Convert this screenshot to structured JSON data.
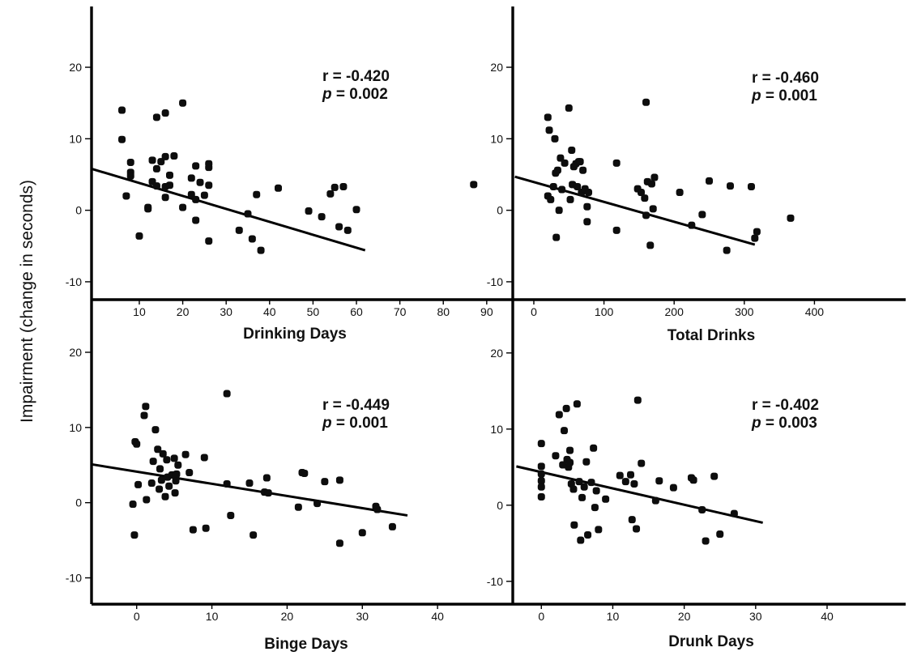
{
  "figure": {
    "ylabel": "Impairment (change in seconds)"
  },
  "chart_data": [
    {
      "type": "scatter",
      "xlabel": "Drinking Days",
      "ylabel": "Impairment (change in seconds)",
      "xlim": [
        -1,
        96
      ],
      "ylim": [
        -12.5,
        28.5
      ],
      "x_ticks": [
        10,
        20,
        30,
        40,
        50,
        60,
        70,
        80,
        90
      ],
      "y_ticks": [
        -10,
        0,
        10,
        20
      ],
      "stat_r": "r = -0.420",
      "stat_p_letter": "p",
      "stat_p_value": " = 0.002",
      "fit_line": {
        "x": [
          -1,
          62
        ],
        "y": [
          5.8,
          -5.6
        ]
      },
      "points": [
        {
          "x": 6,
          "y": 14
        },
        {
          "x": 6,
          "y": 9.9
        },
        {
          "x": 7,
          "y": 2
        },
        {
          "x": 8,
          "y": 5.3
        },
        {
          "x": 8,
          "y": 6.7
        },
        {
          "x": 8,
          "y": 4.8
        },
        {
          "x": 10,
          "y": -3.6
        },
        {
          "x": 12,
          "y": 0.2
        },
        {
          "x": 12,
          "y": 0.4
        },
        {
          "x": 13,
          "y": 4
        },
        {
          "x": 13,
          "y": 7
        },
        {
          "x": 14,
          "y": 13
        },
        {
          "x": 14,
          "y": 3.4
        },
        {
          "x": 14,
          "y": 5.8
        },
        {
          "x": 15,
          "y": 6.8
        },
        {
          "x": 16,
          "y": 13.6
        },
        {
          "x": 16,
          "y": 7.5
        },
        {
          "x": 16,
          "y": 3.3
        },
        {
          "x": 16,
          "y": 1.8
        },
        {
          "x": 17,
          "y": 4.9
        },
        {
          "x": 17,
          "y": 3.5
        },
        {
          "x": 18,
          "y": 7.6
        },
        {
          "x": 20,
          "y": 15
        },
        {
          "x": 20,
          "y": 0.4
        },
        {
          "x": 22,
          "y": 2.2
        },
        {
          "x": 22,
          "y": 4.5
        },
        {
          "x": 23,
          "y": 6.2
        },
        {
          "x": 23,
          "y": 1.5
        },
        {
          "x": 23,
          "y": -1.4
        },
        {
          "x": 24,
          "y": 3.9
        },
        {
          "x": 25,
          "y": 2.1
        },
        {
          "x": 26,
          "y": 3.5
        },
        {
          "x": 26,
          "y": 6.5
        },
        {
          "x": 26,
          "y": 6
        },
        {
          "x": 26,
          "y": -4.3
        },
        {
          "x": 33,
          "y": -2.8
        },
        {
          "x": 35,
          "y": -0.5
        },
        {
          "x": 36,
          "y": -4
        },
        {
          "x": 37,
          "y": 2.2
        },
        {
          "x": 38,
          "y": -5.6
        },
        {
          "x": 42,
          "y": 3.1
        },
        {
          "x": 49,
          "y": -0.1
        },
        {
          "x": 52,
          "y": -0.9
        },
        {
          "x": 54,
          "y": 2.3
        },
        {
          "x": 55,
          "y": 3.2
        },
        {
          "x": 56,
          "y": -2.3
        },
        {
          "x": 57,
          "y": 3.3
        },
        {
          "x": 58,
          "y": -2.8
        },
        {
          "x": 60,
          "y": 0.1
        },
        {
          "x": 87,
          "y": 3.6
        }
      ]
    },
    {
      "type": "scatter",
      "xlabel": "Total Drinks",
      "ylabel": "Impairment (change in seconds)",
      "xlim": [
        -30,
        530
      ],
      "ylim": [
        -12.5,
        28.5
      ],
      "x_ticks": [
        0,
        100,
        200,
        300,
        400
      ],
      "y_ticks": [
        -10,
        0,
        10,
        20
      ],
      "stat_r": "r = -0.460",
      "stat_p_letter": "p",
      "stat_p_value": " = 0.001",
      "fit_line": {
        "x": [
          -27,
          315
        ],
        "y": [
          4.7,
          -4.8
        ]
      },
      "points": [
        {
          "x": 20,
          "y": 13
        },
        {
          "x": 22,
          "y": 11.2
        },
        {
          "x": 20,
          "y": 2
        },
        {
          "x": 24,
          "y": 1.5
        },
        {
          "x": 28,
          "y": 3.3
        },
        {
          "x": 30,
          "y": 10
        },
        {
          "x": 31,
          "y": 5.2
        },
        {
          "x": 32,
          "y": -3.8
        },
        {
          "x": 34,
          "y": 5.6
        },
        {
          "x": 36,
          "y": 0
        },
        {
          "x": 38,
          "y": 7.3
        },
        {
          "x": 40,
          "y": 2.9
        },
        {
          "x": 44,
          "y": 6.6
        },
        {
          "x": 50,
          "y": 14.3
        },
        {
          "x": 52,
          "y": 1.5
        },
        {
          "x": 54,
          "y": 8.4
        },
        {
          "x": 55,
          "y": 3.6
        },
        {
          "x": 57,
          "y": 6.1
        },
        {
          "x": 60,
          "y": 6.5
        },
        {
          "x": 62,
          "y": 3.3
        },
        {
          "x": 64,
          "y": 6.8
        },
        {
          "x": 66,
          "y": 6.8
        },
        {
          "x": 68,
          "y": 2.5
        },
        {
          "x": 70,
          "y": 5.6
        },
        {
          "x": 73,
          "y": 3
        },
        {
          "x": 76,
          "y": 0.5
        },
        {
          "x": 76,
          "y": -1.6
        },
        {
          "x": 78,
          "y": 2.5
        },
        {
          "x": 118,
          "y": 6.6
        },
        {
          "x": 118,
          "y": -2.8
        },
        {
          "x": 148,
          "y": 3
        },
        {
          "x": 153,
          "y": 2.5
        },
        {
          "x": 160,
          "y": 15.1
        },
        {
          "x": 158,
          "y": 1.7
        },
        {
          "x": 160,
          "y": -0.7
        },
        {
          "x": 162,
          "y": 4
        },
        {
          "x": 166,
          "y": -4.9
        },
        {
          "x": 168,
          "y": 3.7
        },
        {
          "x": 170,
          "y": 0.2
        },
        {
          "x": 172,
          "y": 4.6
        },
        {
          "x": 208,
          "y": 2.5
        },
        {
          "x": 225,
          "y": -2.1
        },
        {
          "x": 240,
          "y": -0.6
        },
        {
          "x": 250,
          "y": 4.1
        },
        {
          "x": 275,
          "y": -5.6
        },
        {
          "x": 280,
          "y": 3.4
        },
        {
          "x": 310,
          "y": 3.3
        },
        {
          "x": 315,
          "y": -3.9
        },
        {
          "x": 318,
          "y": -3
        },
        {
          "x": 366,
          "y": -1.1
        }
      ]
    },
    {
      "type": "scatter",
      "xlabel": "Binge Days",
      "ylabel": "Impairment (change in seconds)",
      "xlim": [
        -6,
        50
      ],
      "ylim": [
        -13.5,
        27
      ],
      "x_ticks": [
        0,
        10,
        20,
        30,
        40
      ],
      "y_ticks": [
        -10,
        0,
        10,
        20
      ],
      "stat_r": "r = -0.449",
      "stat_p_letter": "p",
      "stat_p_value": " = 0.001",
      "fit_line": {
        "x": [
          -6,
          36
        ],
        "y": [
          5.1,
          -1.7
        ]
      },
      "points": [
        {
          "x": -0.5,
          "y": -0.2
        },
        {
          "x": -0.3,
          "y": -4.3
        },
        {
          "x": -0.2,
          "y": 8.1
        },
        {
          "x": 0,
          "y": 7.8
        },
        {
          "x": 0.2,
          "y": 2.4
        },
        {
          "x": 1,
          "y": 11.6
        },
        {
          "x": 1.2,
          "y": 12.8
        },
        {
          "x": 1.3,
          "y": 0.4
        },
        {
          "x": 2,
          "y": 2.6
        },
        {
          "x": 2.2,
          "y": 5.5
        },
        {
          "x": 2.5,
          "y": 9.7
        },
        {
          "x": 2.8,
          "y": 7.1
        },
        {
          "x": 3,
          "y": 1.8
        },
        {
          "x": 3.1,
          "y": 4.5
        },
        {
          "x": 3.3,
          "y": 3
        },
        {
          "x": 3.5,
          "y": 6.5
        },
        {
          "x": 3.8,
          "y": 0.8
        },
        {
          "x": 4,
          "y": 5.7
        },
        {
          "x": 4.1,
          "y": 3.4
        },
        {
          "x": 4.3,
          "y": 2.2
        },
        {
          "x": 4.7,
          "y": 3.7
        },
        {
          "x": 5,
          "y": 5.9
        },
        {
          "x": 5.1,
          "y": 1.3
        },
        {
          "x": 5.2,
          "y": 2.9
        },
        {
          "x": 5.3,
          "y": 3.8
        },
        {
          "x": 5.5,
          "y": 5
        },
        {
          "x": 6.5,
          "y": 6.4
        },
        {
          "x": 7,
          "y": 4
        },
        {
          "x": 7.5,
          "y": -3.6
        },
        {
          "x": 9,
          "y": 6
        },
        {
          "x": 9.2,
          "y": -3.4
        },
        {
          "x": 12,
          "y": 2.5
        },
        {
          "x": 12,
          "y": 14.5
        },
        {
          "x": 12.5,
          "y": -1.7
        },
        {
          "x": 15,
          "y": 2.6
        },
        {
          "x": 15.5,
          "y": -4.3
        },
        {
          "x": 17,
          "y": 1.4
        },
        {
          "x": 17.3,
          "y": 3.3
        },
        {
          "x": 17.5,
          "y": 1.3
        },
        {
          "x": 21.5,
          "y": -0.6
        },
        {
          "x": 22,
          "y": 4
        },
        {
          "x": 22.3,
          "y": 3.9
        },
        {
          "x": 24,
          "y": -0.1
        },
        {
          "x": 25,
          "y": 2.8
        },
        {
          "x": 27,
          "y": 3
        },
        {
          "x": 27,
          "y": -5.4
        },
        {
          "x": 30,
          "y": -4
        },
        {
          "x": 31.8,
          "y": -0.5
        },
        {
          "x": 32,
          "y": -0.9
        },
        {
          "x": 34,
          "y": -3.2
        }
      ]
    },
    {
      "type": "scatter",
      "xlabel": "Drunk Days",
      "ylabel": "Impairment (change in seconds)",
      "xlim": [
        -4,
        51
      ],
      "ylim": [
        -13,
        27
      ],
      "x_ticks": [
        0,
        10,
        20,
        30,
        40
      ],
      "y_ticks": [
        -10,
        0,
        10,
        20
      ],
      "stat_r": "r = -0.402",
      "stat_p_letter": "p",
      "stat_p_value": " = 0.003",
      "fit_line": {
        "x": [
          -3.5,
          31
        ],
        "y": [
          5.1,
          -2.3
        ]
      },
      "points": [
        {
          "x": 0,
          "y": 8.1
        },
        {
          "x": 0,
          "y": 5.1
        },
        {
          "x": 0,
          "y": 4.1
        },
        {
          "x": 0,
          "y": 3.2
        },
        {
          "x": 0,
          "y": 2.4
        },
        {
          "x": 0,
          "y": 1.1
        },
        {
          "x": 2,
          "y": 6.5
        },
        {
          "x": 2.5,
          "y": 11.9
        },
        {
          "x": 3,
          "y": 5.3
        },
        {
          "x": 3.2,
          "y": 9.8
        },
        {
          "x": 3.5,
          "y": 12.7
        },
        {
          "x": 3.6,
          "y": 6
        },
        {
          "x": 3.8,
          "y": 5
        },
        {
          "x": 4,
          "y": 7.2
        },
        {
          "x": 4,
          "y": 5.6
        },
        {
          "x": 4.2,
          "y": 2.8
        },
        {
          "x": 4.5,
          "y": 2.1
        },
        {
          "x": 4.6,
          "y": -2.6
        },
        {
          "x": 5,
          "y": 13.3
        },
        {
          "x": 5.3,
          "y": 3.1
        },
        {
          "x": 5.5,
          "y": -4.6
        },
        {
          "x": 5.7,
          "y": 1
        },
        {
          "x": 6,
          "y": 2.4
        },
        {
          "x": 6.3,
          "y": 5.7
        },
        {
          "x": 6.5,
          "y": -3.9
        },
        {
          "x": 7,
          "y": 3
        },
        {
          "x": 7.3,
          "y": 7.5
        },
        {
          "x": 7.5,
          "y": -0.3
        },
        {
          "x": 7.7,
          "y": 1.9
        },
        {
          "x": 8,
          "y": -3.2
        },
        {
          "x": 9,
          "y": 0.8
        },
        {
          "x": 11,
          "y": 3.9
        },
        {
          "x": 11.8,
          "y": 3.1
        },
        {
          "x": 12.5,
          "y": 4
        },
        {
          "x": 12.7,
          "y": -1.9
        },
        {
          "x": 13,
          "y": 2.8
        },
        {
          "x": 13.3,
          "y": -3.1
        },
        {
          "x": 13.5,
          "y": 13.8
        },
        {
          "x": 14,
          "y": 5.5
        },
        {
          "x": 16,
          "y": 0.6
        },
        {
          "x": 16.5,
          "y": 3.2
        },
        {
          "x": 18.5,
          "y": 2.3
        },
        {
          "x": 21,
          "y": 3.6
        },
        {
          "x": 21.3,
          "y": 3.3
        },
        {
          "x": 22.5,
          "y": -0.6
        },
        {
          "x": 23,
          "y": -4.7
        },
        {
          "x": 24.2,
          "y": 3.8
        },
        {
          "x": 25,
          "y": -3.8
        },
        {
          "x": 27,
          "y": -1.1
        }
      ]
    }
  ]
}
